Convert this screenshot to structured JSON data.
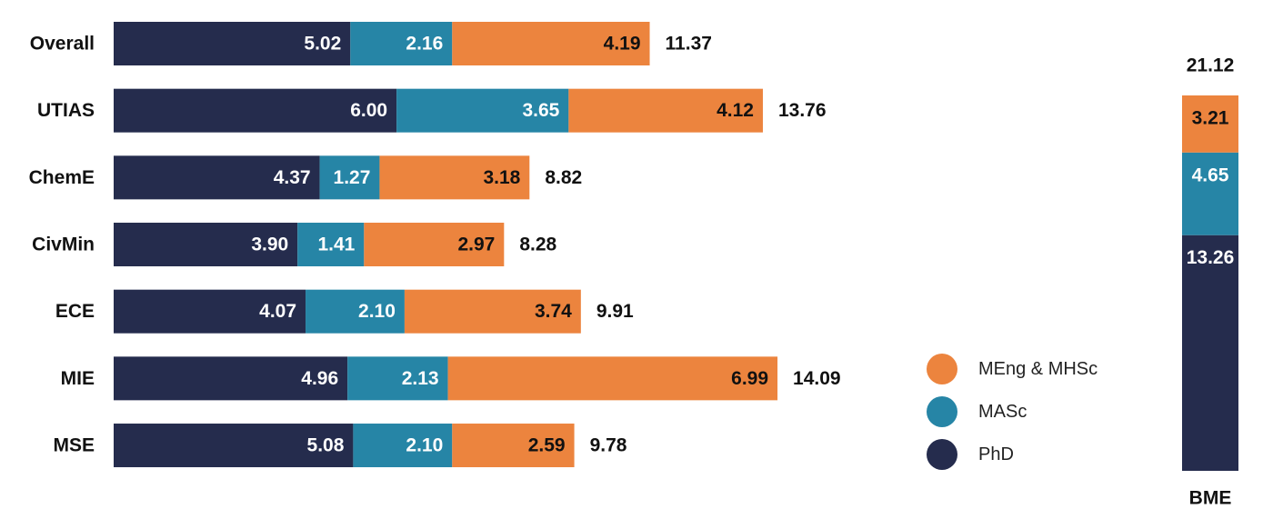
{
  "colors": {
    "PhD": "#252c4d",
    "MASc": "#2685a6",
    "MEng & MHSc": "#ec843e"
  },
  "chart_data": [
    {
      "type": "bar",
      "orientation": "horizontal",
      "stacked": true,
      "categories": [
        "Overall",
        "UTIAS",
        "ChemE",
        "CivMin",
        "ECE",
        "MIE",
        "MSE"
      ],
      "series": [
        {
          "name": "PhD",
          "values": [
            5.02,
            6.0,
            4.37,
            3.9,
            4.07,
            4.96,
            5.08
          ]
        },
        {
          "name": "MASc",
          "values": [
            2.16,
            3.65,
            1.27,
            1.41,
            2.1,
            2.13,
            2.1
          ]
        },
        {
          "name": "MEng & MHSc",
          "values": [
            4.19,
            4.12,
            3.18,
            2.97,
            3.74,
            6.99,
            2.59
          ]
        }
      ],
      "totals": [
        11.37,
        13.76,
        8.82,
        8.28,
        9.91,
        14.09,
        9.78
      ],
      "data_labels": {
        "PhD": [
          "5.02",
          "6.00",
          "4.37",
          "3.90",
          "4.07",
          "4.96",
          "5.08"
        ],
        "MASc": [
          "2.16",
          "3.65",
          "1.27",
          "1.41",
          "2.10",
          "2.13",
          "2.10"
        ],
        "MEng & MHSc": [
          "4.19",
          "4.12",
          "3.18",
          "2.97",
          "3.74",
          "6.99",
          "2.59"
        ],
        "totals": [
          "11.37",
          "13.76",
          "8.82",
          "8.28",
          "9.91",
          "14.09",
          "9.78"
        ]
      },
      "xlim": [
        0,
        14.5
      ],
      "grid": false,
      "legend": "right"
    },
    {
      "type": "bar",
      "orientation": "vertical",
      "stacked": true,
      "categories": [
        "BME"
      ],
      "series": [
        {
          "name": "PhD",
          "values": [
            13.26
          ]
        },
        {
          "name": "MASc",
          "values": [
            4.65
          ]
        },
        {
          "name": "MEng & MHSc",
          "values": [
            3.21
          ]
        }
      ],
      "totals": [
        21.12
      ],
      "data_labels": {
        "PhD": [
          "13.26"
        ],
        "MASc": [
          "4.65"
        ],
        "MEng & MHSc": [
          "3.21"
        ],
        "totals": [
          "21.12"
        ]
      },
      "ylim": [
        0,
        21.12
      ],
      "grid": false
    }
  ],
  "legend": {
    "items": [
      {
        "name": "MEng & MHSc",
        "color": "#ec843e"
      },
      {
        "name": "MASc",
        "color": "#2685a6"
      },
      {
        "name": "PhD",
        "color": "#252c4d"
      }
    ]
  }
}
